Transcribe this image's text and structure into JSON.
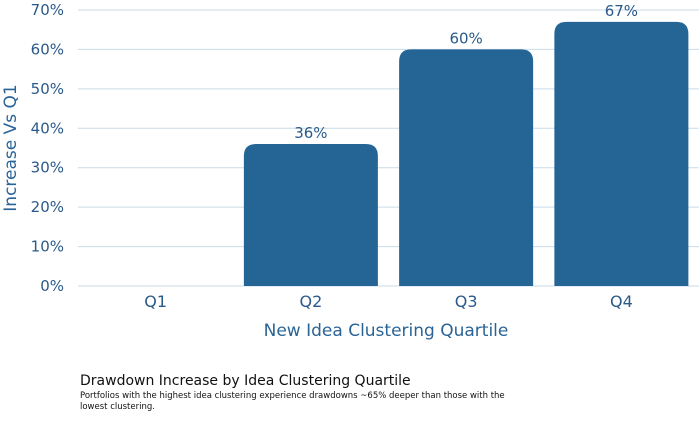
{
  "chart_data": {
    "type": "bar",
    "categories": [
      "Q1",
      "Q2",
      "Q3",
      "Q4"
    ],
    "values": [
      0,
      36,
      60,
      67
    ],
    "data_labels": [
      "",
      "36%",
      "60%",
      "67%"
    ],
    "xlabel": "New Idea Clustering Quartile",
    "ylabel": "Increase Vs Q1",
    "ylim": [
      0,
      70
    ],
    "yticks": [
      "0%",
      "10%",
      "20%",
      "30%",
      "40%",
      "50%",
      "60%",
      "70%"
    ],
    "grid": true,
    "bar_color": "#246595",
    "grid_color": "#c9dbe7"
  },
  "caption": {
    "title": "Drawdown Increase by Idea Clustering Quartile",
    "subtitle": "Portfolios with the highest idea clustering experience drawdowns ~65% deeper than those with the lowest clustering."
  }
}
